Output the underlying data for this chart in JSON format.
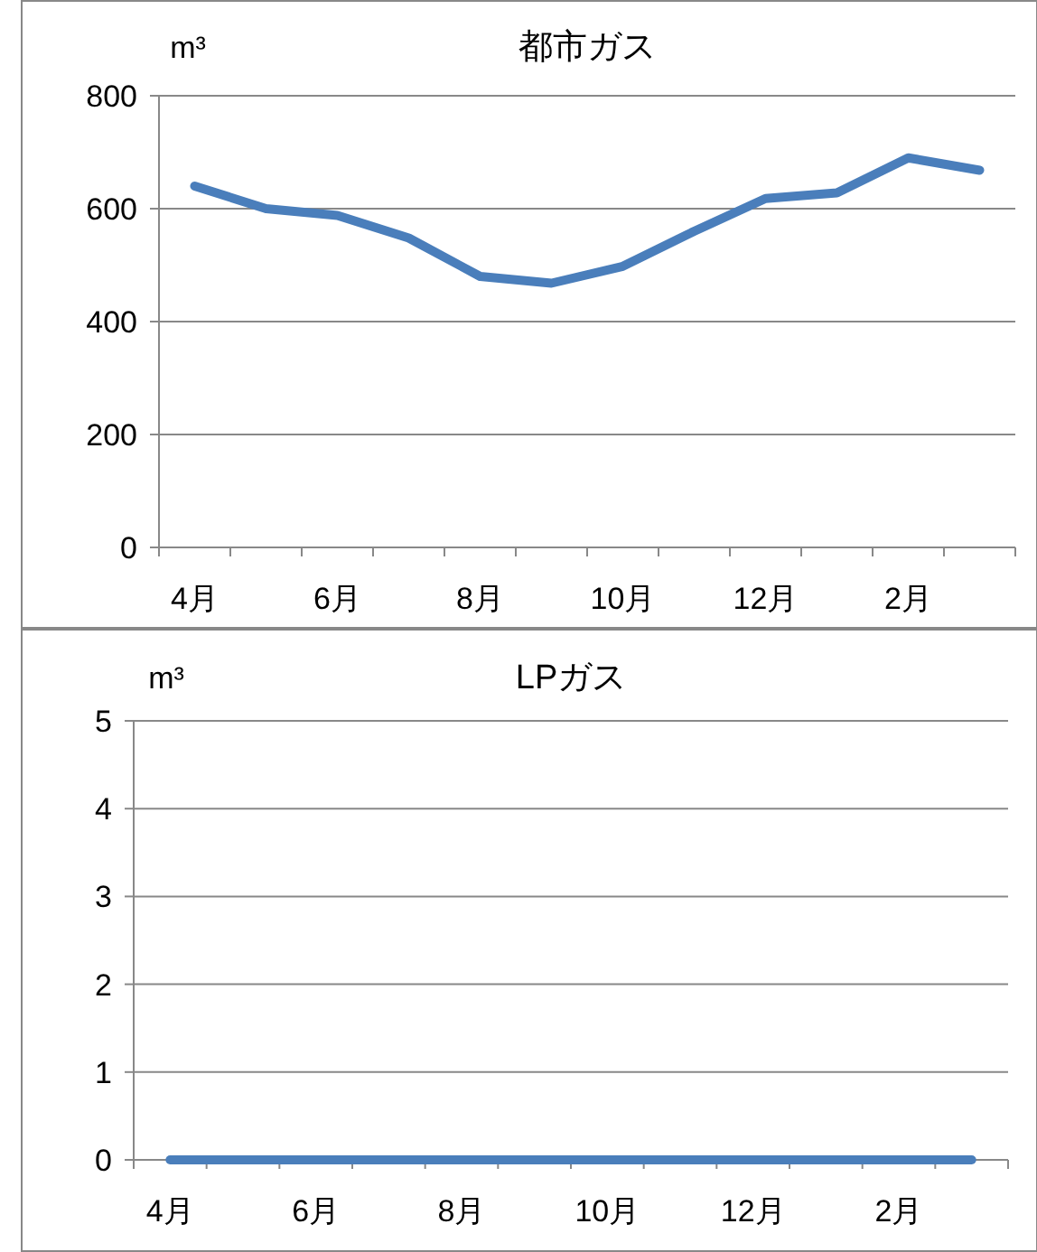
{
  "chart_data": [
    {
      "type": "line",
      "title": "都市ガス",
      "ylabel": "m³",
      "categories": [
        "4月",
        null,
        "6月",
        null,
        "8月",
        null,
        "10月",
        null,
        "12月",
        null,
        "2月",
        null
      ],
      "values": [
        640,
        600,
        588,
        548,
        480,
        468,
        498,
        560,
        618,
        628,
        690,
        668
      ],
      "color": "#4a7ebb",
      "ylim": [
        0,
        800
      ],
      "yticks": [
        0,
        200,
        400,
        600,
        800
      ],
      "grid": "y"
    },
    {
      "type": "line",
      "title": "LPガス",
      "ylabel": "m³",
      "categories": [
        "4月",
        null,
        "6月",
        null,
        "8月",
        null,
        "10月",
        null,
        "12月",
        null,
        "2月",
        null
      ],
      "values": [
        0,
        0,
        0,
        0,
        0,
        0,
        0,
        0,
        0,
        0,
        0,
        0
      ],
      "color": "#4a7ebb",
      "ylim": [
        0,
        5
      ],
      "yticks": [
        0,
        1,
        2,
        3,
        4,
        5
      ],
      "grid": "y"
    }
  ]
}
